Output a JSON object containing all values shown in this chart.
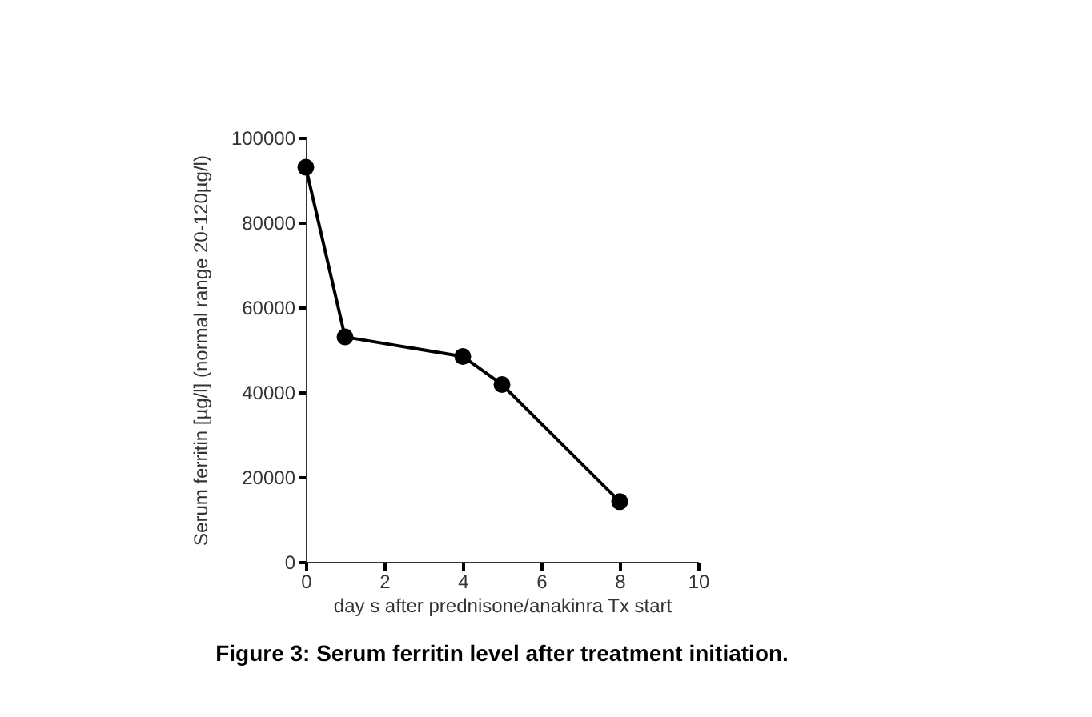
{
  "chart_data": {
    "type": "line",
    "xlabel": "day s after prednisone/anakinra Tx start",
    "ylabel": "Serum ferritin [µg/l] (normal range 20-120µg/l)",
    "x": [
      0,
      1,
      4,
      5,
      8
    ],
    "series": [
      {
        "color": "#000000",
        "values": [
          93000,
          53000,
          48400,
          41800,
          14200
        ]
      }
    ],
    "xlim": [
      0,
      10
    ],
    "xticks": [
      0,
      2,
      4,
      6,
      8,
      10
    ],
    "ylim": [
      0,
      100000
    ],
    "yticks": [
      0,
      20000,
      40000,
      60000,
      80000,
      100000
    ],
    "grid": false,
    "marker": "circle",
    "line_style": "solid",
    "annotations": [
      "Figure 3: Serum ferritin level after treatment initiation."
    ]
  }
}
